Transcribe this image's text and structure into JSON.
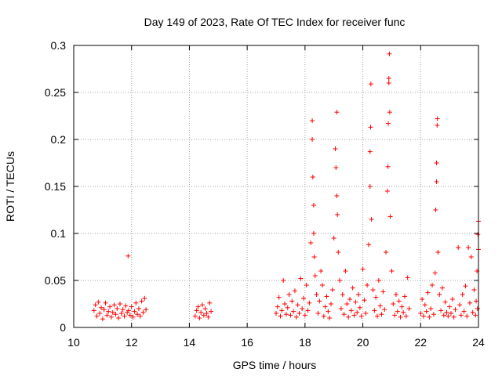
{
  "chart_data": {
    "type": "scatter",
    "title": "Day 149 of 2023, Rate Of TEC Index for receiver func",
    "xlabel": "GPS time / hours",
    "ylabel": "ROTI / TECUs",
    "xlim": [
      10,
      24
    ],
    "ylim": [
      0,
      0.3
    ],
    "x_ticks": [
      10,
      12,
      14,
      16,
      18,
      20,
      22,
      24
    ],
    "y_ticks": [
      0,
      0.05,
      0.1,
      0.15,
      0.2,
      0.25,
      0.3
    ],
    "x_tick_labels": [
      "10",
      "12",
      "14",
      "16",
      "18",
      "20",
      "22",
      "24"
    ],
    "y_tick_labels": [
      "0",
      "0.05",
      "0.1",
      "0.15",
      "0.2",
      "0.25",
      "0.3"
    ],
    "grid": true,
    "marker": "+",
    "marker_color": "#ff0000",
    "series": [
      {
        "name": "ROTI",
        "points": [
          [
            10.7,
            0.018
          ],
          [
            10.75,
            0.024
          ],
          [
            10.8,
            0.012
          ],
          [
            10.85,
            0.027
          ],
          [
            10.9,
            0.015
          ],
          [
            10.95,
            0.021
          ],
          [
            11.0,
            0.009
          ],
          [
            11.05,
            0.019
          ],
          [
            11.1,
            0.026
          ],
          [
            11.15,
            0.013
          ],
          [
            11.2,
            0.017
          ],
          [
            11.25,
            0.022
          ],
          [
            11.3,
            0.011
          ],
          [
            11.35,
            0.016
          ],
          [
            11.4,
            0.024
          ],
          [
            11.45,
            0.014
          ],
          [
            11.5,
            0.02
          ],
          [
            11.55,
            0.01
          ],
          [
            11.6,
            0.025
          ],
          [
            11.65,
            0.015
          ],
          [
            11.7,
            0.019
          ],
          [
            11.75,
            0.012
          ],
          [
            11.8,
            0.023
          ],
          [
            11.85,
            0.016
          ],
          [
            11.88,
            0.076
          ],
          [
            11.9,
            0.018
          ],
          [
            11.95,
            0.013
          ],
          [
            12.0,
            0.022
          ],
          [
            12.05,
            0.011
          ],
          [
            12.1,
            0.017
          ],
          [
            12.15,
            0.026
          ],
          [
            12.2,
            0.014
          ],
          [
            12.25,
            0.02
          ],
          [
            12.3,
            0.012
          ],
          [
            12.35,
            0.028
          ],
          [
            12.4,
            0.016
          ],
          [
            12.45,
            0.031
          ],
          [
            12.5,
            0.019
          ],
          [
            14.2,
            0.012
          ],
          [
            14.25,
            0.018
          ],
          [
            14.3,
            0.022
          ],
          [
            14.35,
            0.01
          ],
          [
            14.4,
            0.016
          ],
          [
            14.45,
            0.024
          ],
          [
            14.5,
            0.013
          ],
          [
            14.55,
            0.02
          ],
          [
            14.6,
            0.015
          ],
          [
            14.65,
            0.011
          ],
          [
            14.7,
            0.026
          ],
          [
            14.75,
            0.017
          ],
          [
            17.0,
            0.015
          ],
          [
            17.05,
            0.022
          ],
          [
            17.1,
            0.032
          ],
          [
            17.15,
            0.012
          ],
          [
            17.2,
            0.018
          ],
          [
            17.25,
            0.05
          ],
          [
            17.3,
            0.025
          ],
          [
            17.35,
            0.014
          ],
          [
            17.4,
            0.021
          ],
          [
            17.45,
            0.035
          ],
          [
            17.5,
            0.013
          ],
          [
            17.55,
            0.028
          ],
          [
            17.6,
            0.017
          ],
          [
            17.65,
            0.039
          ],
          [
            17.7,
            0.011
          ],
          [
            17.75,
            0.024
          ],
          [
            17.8,
            0.015
          ],
          [
            17.85,
            0.052
          ],
          [
            17.9,
            0.02
          ],
          [
            17.95,
            0.031
          ],
          [
            18.0,
            0.013
          ],
          [
            18.05,
            0.045
          ],
          [
            18.1,
            0.018
          ],
          [
            18.15,
            0.026
          ],
          [
            18.2,
            0.09
          ],
          [
            18.25,
            0.22
          ],
          [
            18.25,
            0.2
          ],
          [
            18.27,
            0.16
          ],
          [
            18.3,
            0.13
          ],
          [
            18.3,
            0.1
          ],
          [
            18.32,
            0.075
          ],
          [
            18.35,
            0.055
          ],
          [
            18.4,
            0.035
          ],
          [
            18.45,
            0.015
          ],
          [
            18.5,
            0.028
          ],
          [
            18.55,
            0.06
          ],
          [
            18.6,
            0.045
          ],
          [
            18.65,
            0.012
          ],
          [
            18.7,
            0.022
          ],
          [
            18.75,
            0.033
          ],
          [
            18.8,
            0.017
          ],
          [
            18.85,
            0.01
          ],
          [
            18.9,
            0.025
          ],
          [
            18.95,
            0.04
          ],
          [
            19.0,
            0.095
          ],
          [
            19.05,
            0.19
          ],
          [
            19.07,
            0.17
          ],
          [
            19.1,
            0.229
          ],
          [
            19.1,
            0.14
          ],
          [
            19.12,
            0.12
          ],
          [
            19.15,
            0.08
          ],
          [
            19.2,
            0.05
          ],
          [
            19.25,
            0.02
          ],
          [
            19.3,
            0.035
          ],
          [
            19.35,
            0.014
          ],
          [
            19.4,
            0.06
          ],
          [
            19.45,
            0.025
          ],
          [
            19.5,
            0.011
          ],
          [
            19.55,
            0.03
          ],
          [
            19.6,
            0.018
          ],
          [
            19.65,
            0.042
          ],
          [
            19.7,
            0.013
          ],
          [
            19.75,
            0.027
          ],
          [
            19.8,
            0.016
          ],
          [
            19.85,
            0.035
          ],
          [
            19.9,
            0.021
          ],
          [
            19.95,
            0.012
          ],
          [
            20.0,
            0.062
          ],
          [
            20.05,
            0.029
          ],
          [
            20.1,
            0.015
          ],
          [
            20.15,
            0.045
          ],
          [
            20.2,
            0.088
          ],
          [
            20.25,
            0.187
          ],
          [
            20.25,
            0.15
          ],
          [
            20.27,
            0.213
          ],
          [
            20.28,
            0.259
          ],
          [
            20.3,
            0.115
          ],
          [
            20.35,
            0.04
          ],
          [
            20.4,
            0.018
          ],
          [
            20.45,
            0.032
          ],
          [
            20.5,
            0.012
          ],
          [
            20.55,
            0.05
          ],
          [
            20.6,
            0.023
          ],
          [
            20.65,
            0.014
          ],
          [
            20.7,
            0.038
          ],
          [
            20.75,
            0.019
          ],
          [
            20.8,
            0.08
          ],
          [
            20.85,
            0.145
          ],
          [
            20.87,
            0.171
          ],
          [
            20.88,
            0.217
          ],
          [
            20.9,
            0.26
          ],
          [
            20.9,
            0.265
          ],
          [
            20.92,
            0.291
          ],
          [
            20.93,
            0.229
          ],
          [
            20.95,
            0.118
          ],
          [
            21.0,
            0.06
          ],
          [
            21.05,
            0.025
          ],
          [
            21.1,
            0.013
          ],
          [
            21.15,
            0.035
          ],
          [
            21.2,
            0.017
          ],
          [
            21.25,
            0.028
          ],
          [
            21.3,
            0.011
          ],
          [
            21.35,
            0.022
          ],
          [
            21.4,
            0.016
          ],
          [
            21.45,
            0.033
          ],
          [
            21.5,
            0.012
          ],
          [
            21.55,
            0.053
          ],
          [
            21.6,
            0.02
          ],
          [
            22.0,
            0.015
          ],
          [
            22.05,
            0.03
          ],
          [
            22.1,
            0.012
          ],
          [
            22.15,
            0.024
          ],
          [
            22.2,
            0.017
          ],
          [
            22.25,
            0.037
          ],
          [
            22.3,
            0.011
          ],
          [
            22.35,
            0.02
          ],
          [
            22.4,
            0.045
          ],
          [
            22.45,
            0.014
          ],
          [
            22.5,
            0.058
          ],
          [
            22.52,
            0.125
          ],
          [
            22.55,
            0.155
          ],
          [
            22.55,
            0.175
          ],
          [
            22.57,
            0.215
          ],
          [
            22.58,
            0.222
          ],
          [
            22.6,
            0.08
          ],
          [
            22.65,
            0.035
          ],
          [
            22.7,
            0.018
          ],
          [
            22.75,
            0.042
          ],
          [
            22.8,
            0.013
          ],
          [
            22.85,
            0.027
          ],
          [
            22.9,
            0.016
          ],
          [
            22.95,
            0.012
          ],
          [
            23.0,
            0.022
          ],
          [
            23.05,
            0.015
          ],
          [
            23.1,
            0.03
          ],
          [
            23.15,
            0.011
          ],
          [
            23.2,
            0.019
          ],
          [
            23.3,
            0.085
          ],
          [
            23.35,
            0.024
          ],
          [
            23.4,
            0.013
          ],
          [
            23.45,
            0.035
          ],
          [
            23.5,
            0.017
          ],
          [
            23.55,
            0.044
          ],
          [
            23.6,
            0.012
          ],
          [
            23.65,
            0.085
          ],
          [
            23.7,
            0.026
          ],
          [
            23.75,
            0.075
          ],
          [
            23.8,
            0.016
          ],
          [
            23.85,
            0.04
          ],
          [
            23.9,
            0.013
          ],
          [
            23.95,
            0.06
          ],
          [
            23.98,
            0.099
          ],
          [
            24.0,
            0.113
          ],
          [
            24.0,
            0.083
          ],
          [
            23.97,
            0.02
          ],
          [
            23.92,
            0.028
          ]
        ]
      }
    ]
  }
}
